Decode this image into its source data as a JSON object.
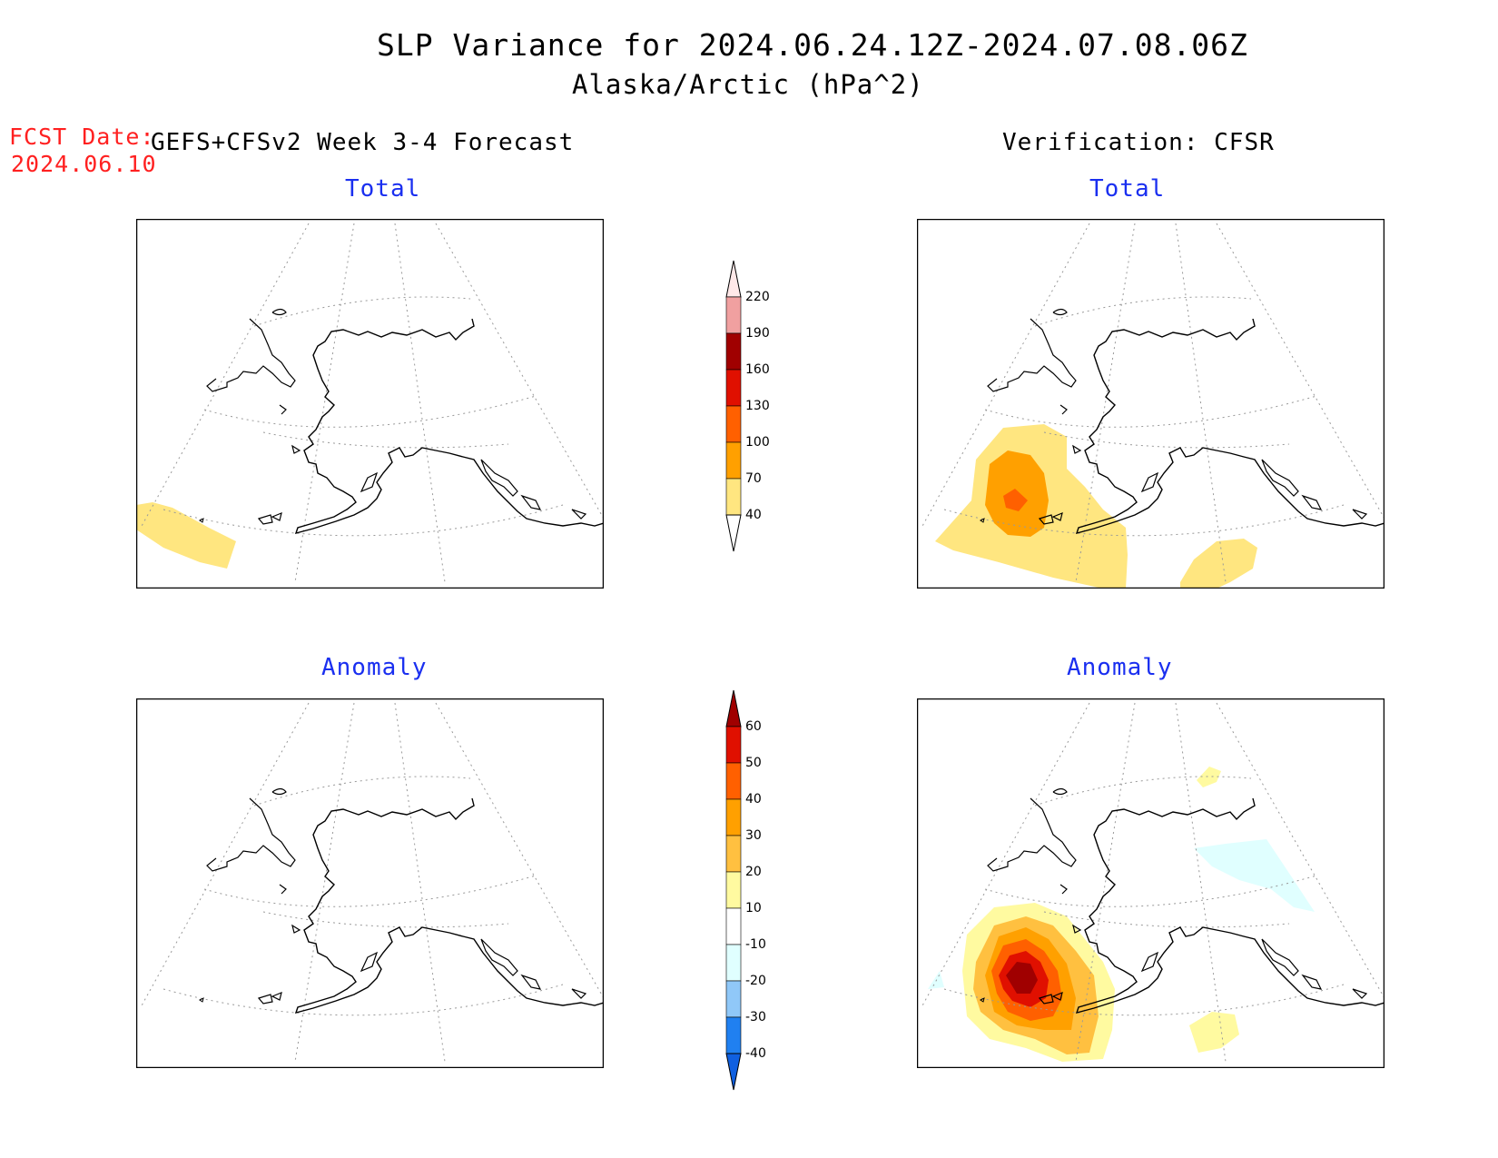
{
  "title": {
    "line1": "SLP Variance for 2024.06.24.12Z-2024.07.08.06Z",
    "line2": "Alaska/Arctic (hPa^2)"
  },
  "fcst_date": {
    "label": "FCST Date:",
    "value": "2024.06.10"
  },
  "left_header": "GEFS+CFSv2 Week 3-4 Forecast",
  "right_header": "Verification: CFSR",
  "panels": {
    "fcst_total": {
      "title": "Total"
    },
    "obs_total": {
      "title": "Total"
    },
    "fcst_anom": {
      "title": "Anomaly"
    },
    "obs_anom": {
      "title": "Anomaly"
    }
  },
  "colorbar_total": {
    "levels": [
      "40",
      "70",
      "100",
      "130",
      "160",
      "190",
      "220"
    ],
    "colors": [
      "#ffe680",
      "#ffa000",
      "#ff6000",
      "#e01000",
      "#a00000",
      "#f0a0a0",
      "#ffe8e8"
    ]
  },
  "colorbar_anom": {
    "levels": [
      "-40",
      "-30",
      "-20",
      "-10",
      "10",
      "20",
      "30",
      "40",
      "50",
      "60"
    ],
    "colors": [
      "#1060e0",
      "#2080f0",
      "#90c8f8",
      "#e0ffff",
      "#ffffff",
      "#fffaa0",
      "#ffc040",
      "#ffa000",
      "#ff6000",
      "#e01000",
      "#a00000"
    ]
  }
}
